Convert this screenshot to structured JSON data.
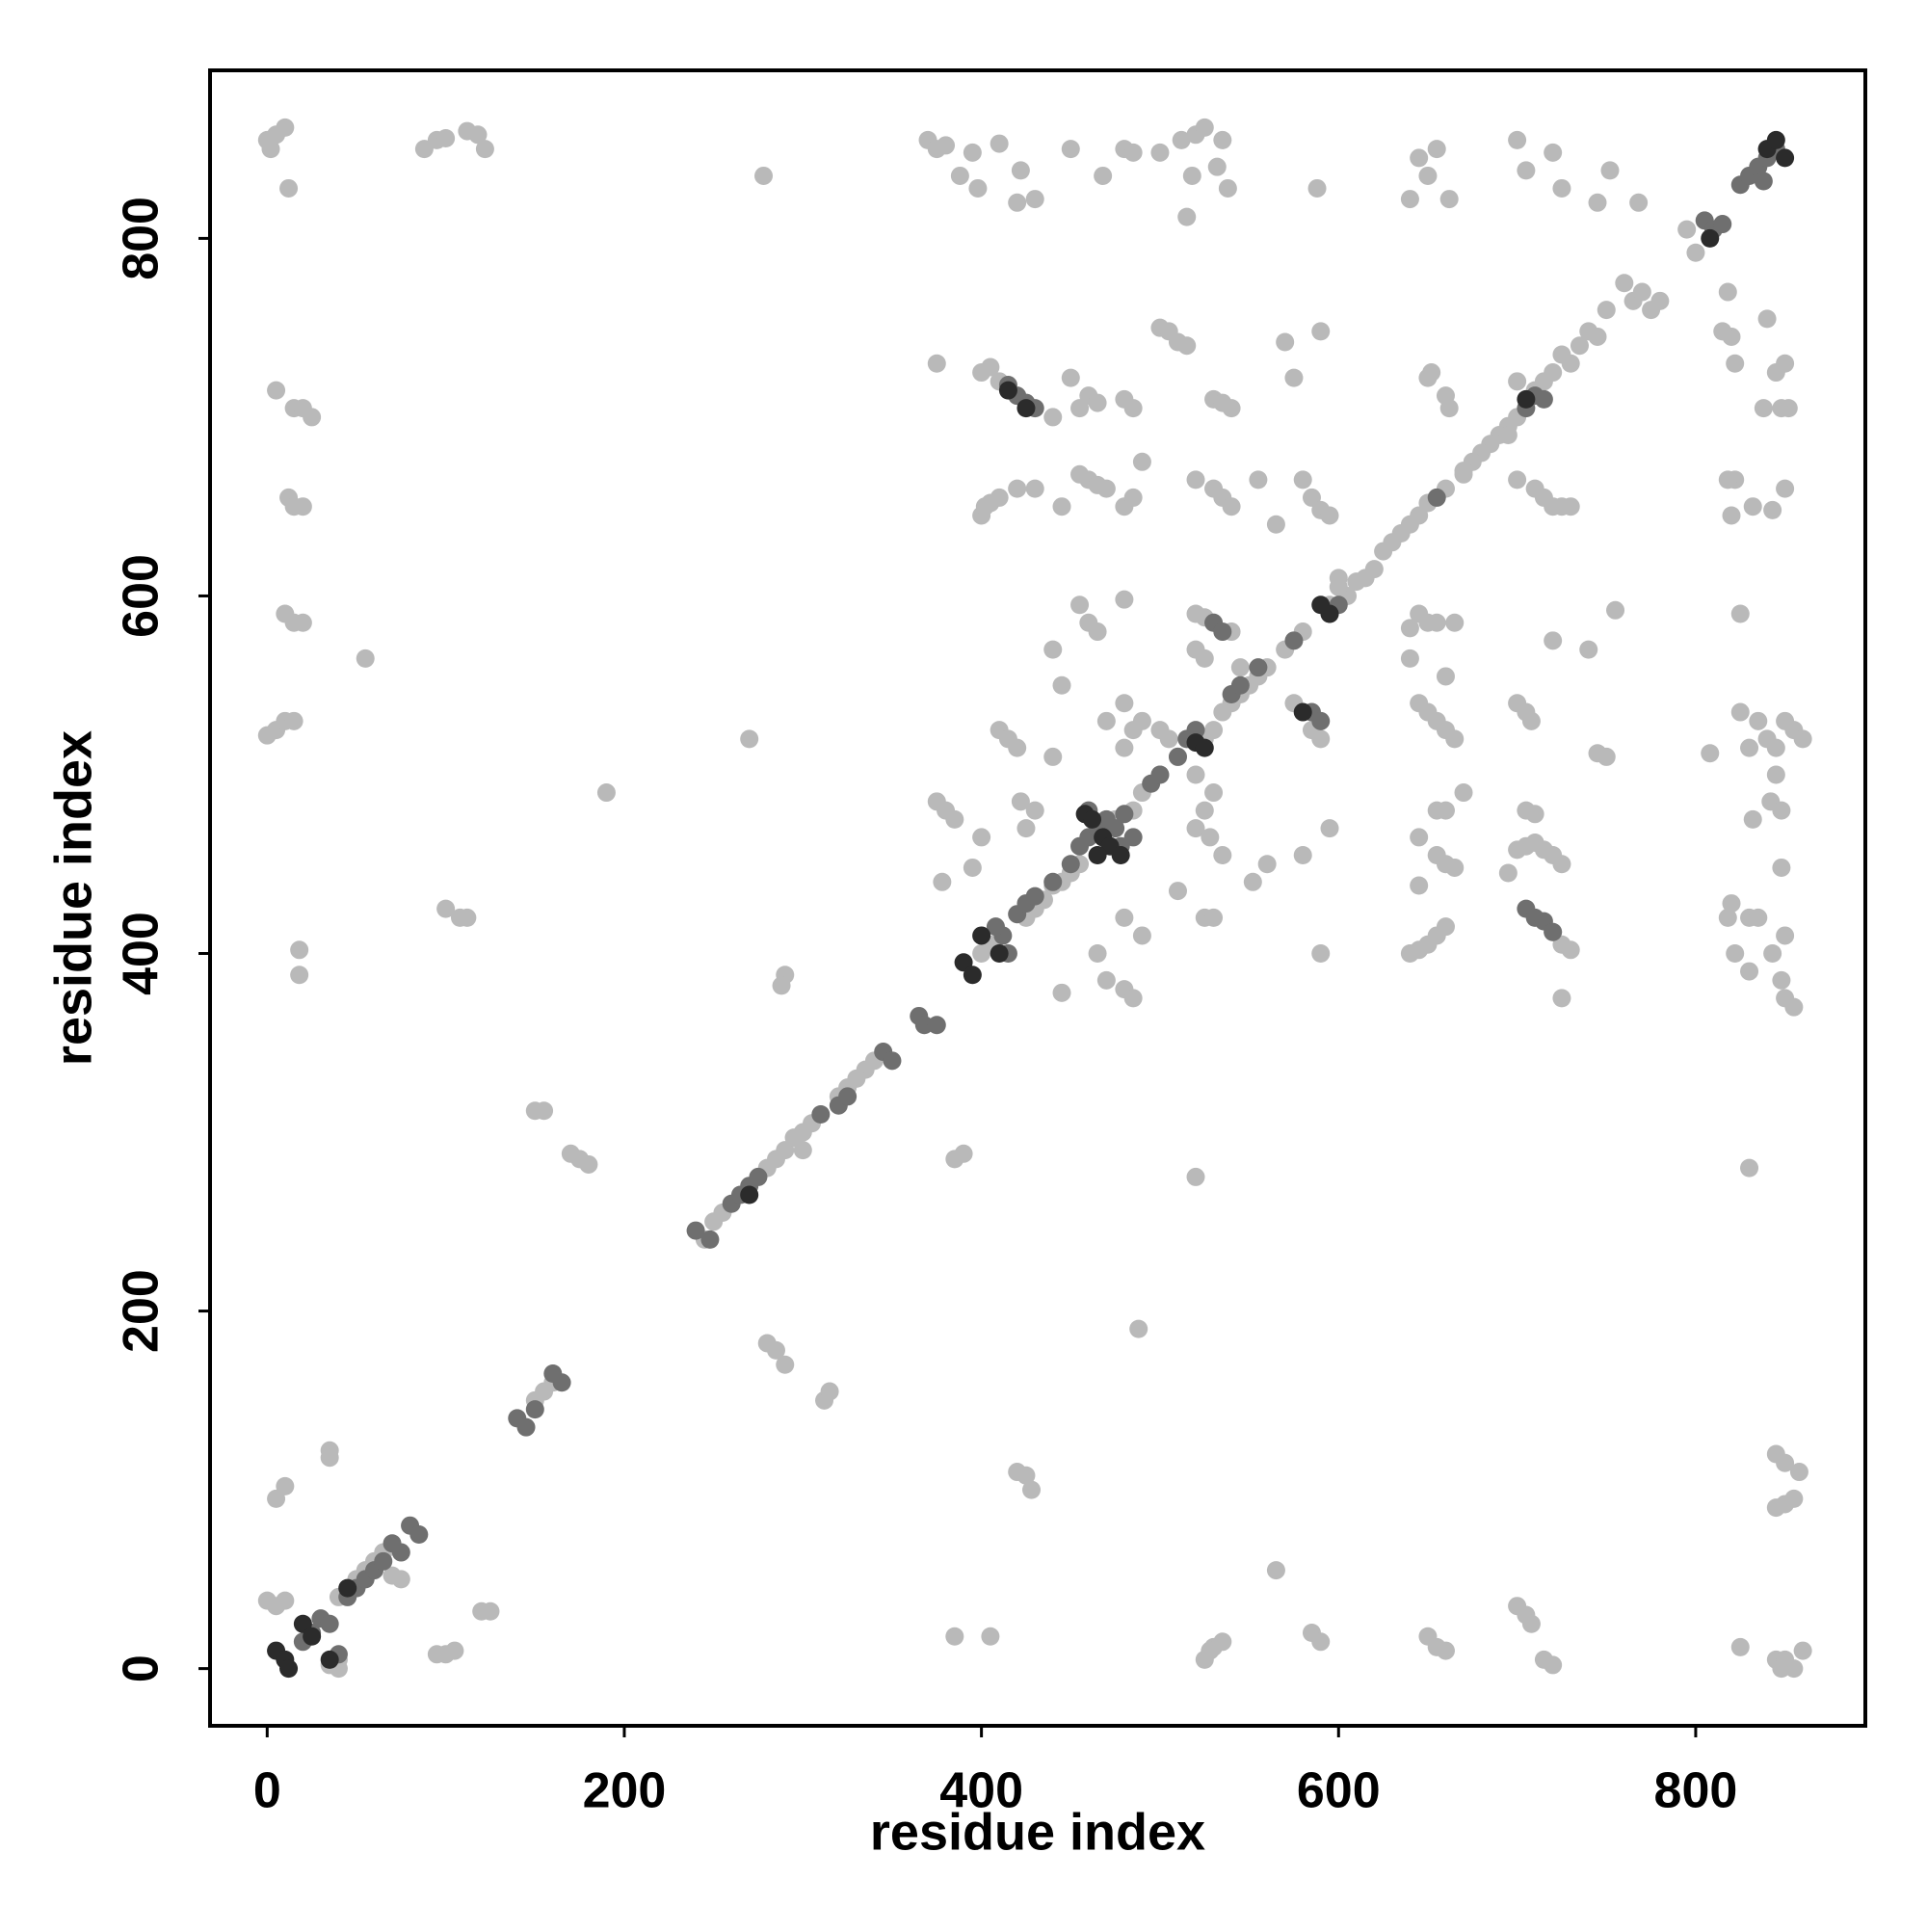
{
  "chart_data": {
    "type": "scatter",
    "x_label": "residue index",
    "y_label": "residue index",
    "xlim": [
      -32,
      895
    ],
    "ylim": [
      -32,
      894
    ],
    "xticks": [
      0,
      200,
      400,
      600,
      800
    ],
    "yticks": [
      0,
      200,
      400,
      600,
      800
    ],
    "series": [
      {
        "color": "#b9b9b9",
        "x": [
          0,
          2,
          5,
          10,
          12,
          88,
          95,
          100,
          112,
          118,
          122,
          278,
          370,
          375,
          380,
          388,
          395,
          398,
          410,
          420,
          422,
          430,
          450,
          468,
          480,
          485,
          500,
          512,
          515,
          518,
          520,
          525,
          532,
          535,
          538,
          588,
          640,
          645,
          650,
          655,
          662,
          700,
          705,
          720,
          725,
          745,
          752,
          768,
          795,
          800,
          760,
          765,
          770,
          775,
          780,
          750,
          745,
          740,
          735,
          730,
          725,
          720,
          715,
          710,
          700,
          695,
          690,
          685,
          680,
          675,
          670,
          660,
          650,
          645,
          640,
          635,
          630,
          625,
          620,
          615,
          610,
          605,
          600,
          595,
          580,
          570,
          560,
          555,
          550,
          545,
          540,
          535,
          530,
          525,
          510,
          500,
          490,
          485,
          475,
          470,
          455,
          450,
          445,
          440,
          435,
          430,
          425,
          405,
          400,
          340,
          335,
          330,
          325,
          320,
          305,
          300,
          290,
          285,
          280,
          255,
          250,
          245,
          160,
          155,
          150,
          60,
          55,
          50,
          65,
          70,
          75,
          40,
          5,
          15,
          20,
          25,
          12,
          15,
          20,
          10,
          15,
          20,
          0,
          5,
          10,
          15,
          55,
          18,
          18,
          190,
          100,
          108,
          112,
          150,
          155,
          170,
          175,
          180,
          35,
          35,
          10,
          5,
          0,
          5,
          10,
          120,
          125,
          40,
          40,
          35,
          95,
          100,
          105,
          270,
          280,
          285,
          290,
          312,
          315,
          290,
          288,
          295,
          300,
          385,
          390,
          385,
          405,
          420,
          425,
          428,
          488,
          565,
          520,
          525,
          530,
          535,
          528,
          585,
          590,
          650,
          655,
          660,
          700,
          705,
          708,
          715,
          720,
          825,
          845,
          850,
          855,
          860,
          848,
          845,
          850,
          858,
          845,
          850,
          855,
          830,
          850,
          845,
          840,
          838,
          848,
          852,
          820,
          815,
          822,
          818,
          822,
          818,
          820,
          832,
          843,
          850,
          825,
          808,
          825,
          835,
          840,
          845,
          850,
          855,
          860,
          830,
          845,
          842,
          848,
          832,
          820,
          818,
          830,
          835,
          822,
          830,
          843,
          850,
          848,
          850,
          855,
          848,
          650,
          652,
          660,
          662,
          670,
          645,
          650,
          655,
          665,
          640,
          640,
          660,
          645,
          650,
          655,
          660,
          665,
          670,
          655,
          660,
          645,
          655,
          660,
          665,
          645,
          640,
          645,
          650,
          655,
          660,
          700,
          695,
          700,
          710,
          715,
          720,
          725,
          730,
          700,
          705,
          708,
          720,
          740,
          745,
          750,
          755,
          705,
          710,
          700,
          705,
          710,
          715,
          720,
          725,
          695,
          720,
          725,
          730,
          725,
          400,
          405,
          410,
          375,
          440,
          450,
          455,
          460,
          465,
          480,
          485,
          455,
          460,
          465,
          470,
          480,
          490,
          485,
          430,
          400,
          402,
          405,
          410,
          420,
          445,
          455,
          460,
          465,
          440,
          445,
          480,
          480,
          490,
          500,
          505,
          470,
          485,
          480,
          520,
          530,
          525,
          520,
          528,
          535,
          510,
          525,
          530,
          552,
          560,
          580,
          590,
          595,
          480,
          490,
          465,
          470,
          480,
          485,
          445,
          410,
          415,
          420,
          440,
          422,
          430,
          425,
          375,
          380,
          385,
          378,
          395,
          400,
          500,
          505,
          510,
          515,
          590,
          570,
          575,
          530,
          535,
          540,
          520,
          530,
          535,
          540,
          555,
          565,
          580,
          585,
          590,
          595,
          600,
          520,
          525,
          530,
          520,
          525,
          540,
          545,
          575,
          585,
          590
        ],
        "values": [
          855,
          850,
          858,
          862,
          828,
          850,
          855,
          856,
          860,
          858,
          850,
          835,
          855,
          850,
          852,
          835,
          848,
          828,
          853,
          820,
          838,
          822,
          850,
          835,
          850,
          848,
          848,
          855,
          812,
          835,
          858,
          862,
          840,
          855,
          828,
          828,
          822,
          845,
          835,
          850,
          822,
          855,
          838,
          848,
          828,
          820,
          838,
          820,
          805,
          792,
          775,
          765,
          770,
          760,
          765,
          760,
          745,
          748,
          740,
          730,
          735,
          725,
          720,
          715,
          700,
          695,
          690,
          685,
          680,
          675,
          670,
          660,
          652,
          645,
          640,
          635,
          630,
          625,
          615,
          610,
          608,
          600,
          605,
          595,
          580,
          570,
          560,
          555,
          550,
          545,
          540,
          535,
          525,
          520,
          510,
          500,
          490,
          480,
          475,
          470,
          450,
          445,
          440,
          438,
          430,
          425,
          420,
          405,
          400,
          340,
          335,
          330,
          325,
          320,
          305,
          300,
          290,
          285,
          280,
          255,
          250,
          240,
          160,
          155,
          150,
          60,
          55,
          50,
          65,
          52,
          50,
          40,
          715,
          705,
          705,
          700,
          655,
          650,
          650,
          590,
          585,
          585,
          522,
          525,
          530,
          530,
          565,
          402,
          388,
          490,
          425,
          420,
          420,
          312,
          312,
          288,
          285,
          282,
          122,
          118,
          102,
          95,
          38,
          35,
          38,
          32,
          32,
          5,
          0,
          2,
          8,
          8,
          10,
          520,
          182,
          178,
          170,
          150,
          155,
          388,
          382,
          297,
          290,
          285,
          288,
          18,
          18,
          110,
          108,
          100,
          190,
          55,
          275,
          5,
          12,
          15,
          10,
          20,
          15,
          18,
          12,
          10,
          35,
          30,
          25,
          5,
          2,
          12,
          5,
          5,
          0,
          10,
          0,
          120,
          115,
          110,
          90,
          92,
          95,
          280,
          730,
          725,
          755,
          705,
          705,
          705,
          745,
          748,
          730,
          770,
          665,
          665,
          645,
          650,
          648,
          660,
          590,
          512,
          535,
          530,
          520,
          515,
          530,
          525,
          520,
          515,
          500,
          485,
          480,
          475,
          428,
          420,
          420,
          420,
          400,
          390,
          400,
          410,
          385,
          375,
          370,
          448,
          722,
          725,
          712,
          705,
          668,
          590,
          585,
          585,
          585,
          582,
          565,
          555,
          540,
          535,
          530,
          525,
          520,
          490,
          480,
          480,
          465,
          455,
          450,
          448,
          438,
          400,
          402,
          405,
          410,
          415,
          720,
          690,
          665,
          660,
          655,
          650,
          650,
          650,
          540,
          535,
          530,
          575,
          570,
          512,
          510,
          592,
          480,
          478,
          458,
          460,
          462,
          458,
          455,
          450,
          445,
          412,
          405,
          402,
          375,
          725,
          728,
          720,
          730,
          700,
          722,
          705,
          712,
          708,
          710,
          705,
          668,
          665,
          662,
          660,
          650,
          675,
          655,
          660,
          645,
          650,
          652,
          655,
          660,
          650,
          595,
          585,
          580,
          570,
          550,
          598,
          540,
          530,
          525,
          520,
          530,
          525,
          515,
          500,
          490,
          480,
          470,
          465,
          455,
          435,
          420,
          420,
          440,
          450,
          455,
          400,
          470,
          420,
          410,
          400,
          385,
          380,
          375,
          378,
          525,
          520,
          515,
          510,
          485,
          480,
          470,
          485,
          480,
          475,
          440,
          448,
          465,
          750,
          748,
          742,
          740,
          748,
          742,
          722,
          710,
          708,
          705,
          665,
          660,
          655,
          650,
          665,
          640,
          665,
          655,
          648,
          645,
          610,
          590,
          588,
          585,
          570,
          565,
          580,
          560,
          540,
          525,
          520
        ]
      },
      {
        "color": "#6f6f6f",
        "x": [
          20,
          25,
          30,
          35,
          45,
          50,
          55,
          60,
          65,
          70,
          75,
          80,
          85,
          40,
          140,
          145,
          160,
          165,
          150,
          240,
          248,
          260,
          265,
          270,
          275,
          310,
          320,
          325,
          345,
          350,
          365,
          368,
          375,
          415,
          412,
          408,
          420,
          425,
          430,
          440,
          450,
          455,
          460,
          465,
          470,
          475,
          460,
          478,
          480,
          485,
          495,
          500,
          510,
          515,
          520,
          530,
          535,
          540,
          545,
          555,
          575,
          585,
          590,
          595,
          600,
          655,
          705,
          710,
          715,
          705,
          710,
          715,
          720,
          415,
          420,
          425,
          430,
          805,
          810,
          815,
          825,
          830,
          835,
          840,
          838,
          845
        ],
        "values": [
          15,
          20,
          28,
          25,
          40,
          45,
          50,
          55,
          60,
          70,
          65,
          80,
          75,
          8,
          140,
          135,
          165,
          160,
          145,
          245,
          240,
          260,
          265,
          270,
          275,
          310,
          315,
          320,
          345,
          340,
          365,
          360,
          360,
          400,
          410,
          415,
          422,
          428,
          432,
          440,
          450,
          460,
          465,
          470,
          475,
          470,
          480,
          460,
          478,
          465,
          495,
          500,
          510,
          520,
          525,
          585,
          580,
          545,
          550,
          560,
          575,
          535,
          530,
          590,
          595,
          655,
          705,
          712,
          710,
          425,
          420,
          418,
          412,
          718,
          712,
          708,
          705,
          810,
          805,
          808,
          830,
          835,
          840,
          845,
          832,
          850
        ]
      },
      {
        "color": "#2b2b2b",
        "x": [
          5,
          10,
          12,
          20,
          25,
          45,
          390,
          395,
          595,
          590,
          458,
          462,
          468,
          472,
          478,
          465,
          400,
          410,
          425,
          415,
          705,
          840,
          850,
          845,
          808,
          520,
          525,
          580,
          270,
          35
        ],
        "values": [
          10,
          5,
          0,
          25,
          18,
          45,
          395,
          388,
          590,
          595,
          478,
          475,
          465,
          460,
          455,
          455,
          410,
          400,
          705,
          715,
          710,
          850,
          845,
          855,
          800,
          518,
          515,
          535,
          265,
          5
        ]
      }
    ]
  }
}
